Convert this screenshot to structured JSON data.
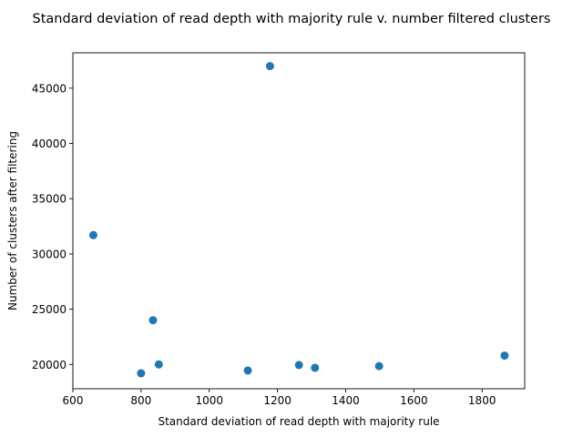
{
  "chart_data": {
    "type": "scatter",
    "title": "Standard deviation of read depth with majority rule v. number filtered clusters",
    "xlabel": "Standard deviation of read depth with majority rule",
    "ylabel": "Number of clusters after filtering",
    "xlim": [
      600,
      1925
    ],
    "ylim": [
      17800,
      48200
    ],
    "xticks": [
      600,
      800,
      1000,
      1200,
      1400,
      1600,
      1800
    ],
    "yticks": [
      20000,
      25000,
      30000,
      35000,
      40000,
      45000
    ],
    "grid": false,
    "marker_color": "#1f77b4",
    "points": [
      {
        "x": 660,
        "y": 31700
      },
      {
        "x": 800,
        "y": 19200
      },
      {
        "x": 835,
        "y": 24000
      },
      {
        "x": 852,
        "y": 20000
      },
      {
        "x": 1113,
        "y": 19450
      },
      {
        "x": 1178,
        "y": 47000
      },
      {
        "x": 1263,
        "y": 19950
      },
      {
        "x": 1310,
        "y": 19700
      },
      {
        "x": 1498,
        "y": 19850
      },
      {
        "x": 1866,
        "y": 20800
      }
    ]
  }
}
